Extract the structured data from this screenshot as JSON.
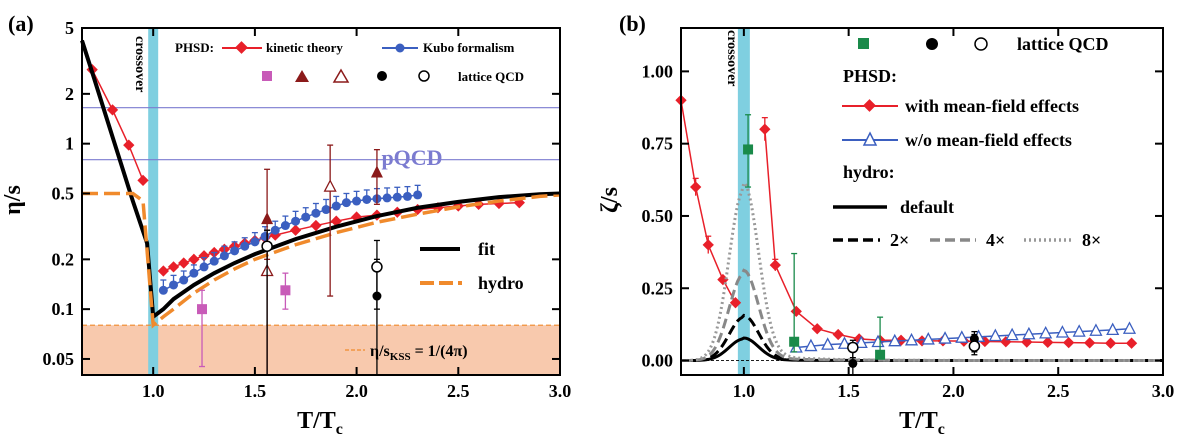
{
  "chart_data": [
    {
      "panel": "(a)",
      "type": "line",
      "xlabel": "T/T_c",
      "ylabel": "η/s",
      "yscale": "log",
      "xlim": [
        0.65,
        3.0
      ],
      "ylim": [
        0.04,
        5.0
      ],
      "xticks": [
        "1.0",
        "1.5",
        "2.0",
        "2.5",
        "3.0"
      ],
      "yticks": [
        {
          "value": 0.05,
          "label": "0.05"
        },
        {
          "value": 0.1,
          "label": "0.1"
        },
        {
          "value": 0.2,
          "label": "0.2"
        },
        {
          "value": 0.5,
          "label": "0.5"
        },
        {
          "value": 1,
          "label": "1"
        },
        {
          "value": 2,
          "label": "2"
        },
        {
          "value": 5,
          "label": "5"
        }
      ],
      "crossover_label": "crossover",
      "crossover_x": 1.0,
      "pqcd": {
        "label": "pQCD",
        "levels": [
          0.8,
          1.65
        ],
        "color": "#7b7bd0"
      },
      "kss": {
        "label_main": "η/s",
        "label_sub": "KSS",
        "label_tail": " = 1/(4π)",
        "value": 0.08,
        "fill": "#f8c9ad",
        "color": "#f08a2c"
      },
      "legend": {
        "phsd_prefix": "PHSD:",
        "kinetic": "kinetic theory",
        "kubo": "Kubo formalism",
        "lattice": "lattice QCD",
        "fit": "fit",
        "hydro": "hydro"
      },
      "series": [
        {
          "name": "kinetic theory",
          "color": "#e8202a",
          "marker": "diamond",
          "x": [
            0.7,
            0.8,
            0.88,
            0.95,
            1.05,
            1.1,
            1.15,
            1.2,
            1.25,
            1.3,
            1.35,
            1.4,
            1.45,
            1.5,
            1.55,
            1.6,
            1.7,
            1.8,
            1.9,
            2.0,
            2.1,
            2.2,
            2.3,
            2.4,
            2.5,
            2.6,
            2.7,
            2.8
          ],
          "values": [
            2.8,
            1.6,
            0.98,
            0.6,
            0.17,
            0.18,
            0.19,
            0.2,
            0.21,
            0.22,
            0.23,
            0.24,
            0.25,
            0.26,
            0.27,
            0.28,
            0.3,
            0.32,
            0.34,
            0.36,
            0.37,
            0.385,
            0.4,
            0.41,
            0.42,
            0.43,
            0.435,
            0.44
          ]
        },
        {
          "name": "Kubo formalism",
          "color": "#3b5fc0",
          "marker": "circle",
          "x": [
            1.05,
            1.1,
            1.15,
            1.2,
            1.25,
            1.3,
            1.35,
            1.4,
            1.45,
            1.5,
            1.55,
            1.6,
            1.65,
            1.7,
            1.75,
            1.8,
            1.85,
            1.9,
            1.95,
            2.0,
            2.05,
            2.1,
            2.15,
            2.2,
            2.25,
            2.3
          ],
          "values": [
            0.13,
            0.14,
            0.15,
            0.165,
            0.18,
            0.195,
            0.21,
            0.225,
            0.24,
            0.255,
            0.275,
            0.3,
            0.32,
            0.34,
            0.36,
            0.38,
            0.4,
            0.42,
            0.44,
            0.45,
            0.46,
            0.465,
            0.47,
            0.475,
            0.48,
            0.49
          ],
          "err_up": [
            0.02,
            0.02,
            0.02,
            0.02,
            0.025,
            0.025,
            0.03,
            0.03,
            0.03,
            0.035,
            0.04,
            0.04,
            0.045,
            0.05,
            0.05,
            0.055,
            0.06,
            0.06,
            0.06,
            0.065,
            0.065,
            0.07,
            0.07,
            0.07,
            0.07,
            0.07
          ]
        },
        {
          "name": "fit",
          "color": "#000000",
          "style": "solid",
          "x": [
            0.65,
            0.7,
            0.8,
            0.9,
            0.97,
            1.0,
            1.05,
            1.1,
            1.2,
            1.3,
            1.4,
            1.5,
            1.7,
            1.9,
            2.1,
            2.3,
            2.5,
            2.7,
            2.9,
            3.0
          ],
          "values": [
            4.2,
            2.7,
            1.1,
            0.45,
            0.25,
            0.09,
            0.1,
            0.115,
            0.14,
            0.165,
            0.19,
            0.215,
            0.265,
            0.315,
            0.365,
            0.41,
            0.445,
            0.475,
            0.495,
            0.5
          ]
        },
        {
          "name": "hydro",
          "color": "#f08a2c",
          "style": "dashed",
          "x": [
            0.65,
            0.9,
            0.95,
            1.0,
            1.05,
            1.1,
            1.2,
            1.3,
            1.4,
            1.5,
            1.7,
            1.9,
            2.1,
            2.3,
            2.5,
            2.7,
            2.9,
            3.0
          ],
          "values": [
            0.5,
            0.5,
            0.45,
            0.08,
            0.09,
            0.1,
            0.125,
            0.15,
            0.175,
            0.2,
            0.245,
            0.29,
            0.335,
            0.375,
            0.415,
            0.45,
            0.48,
            0.49
          ]
        },
        {
          "name": "lattice square",
          "color": "#c85bb8",
          "marker": "square",
          "x": [
            1.24,
            1.65
          ],
          "values": [
            0.1,
            0.13
          ],
          "err_low": [
            0.045,
            0.1
          ],
          "err_up": [
            0.13,
            0.165
          ]
        },
        {
          "name": "lattice triangle filled",
          "color": "#8b1a1a",
          "marker": "triangle",
          "x": [
            1.56,
            2.1
          ],
          "values": [
            0.35,
            0.67
          ],
          "err_low": [
            0.2,
            0.43
          ],
          "err_up": [
            0.7,
            0.92
          ]
        },
        {
          "name": "lattice triangle open",
          "color": "#8b1a1a",
          "marker": "triangle-open",
          "x": [
            1.56,
            1.87
          ],
          "values": [
            0.17,
            0.55
          ],
          "err_low": [
            0.04,
            0.12
          ],
          "err_up": [
            0.3,
            0.98
          ]
        },
        {
          "name": "lattice circle filled",
          "color": "#000000",
          "marker": "circle",
          "x": [
            2.1
          ],
          "values": [
            0.12
          ],
          "err_low": [
            0.04
          ],
          "err_up": [
            0.2
          ]
        },
        {
          "name": "lattice circle open",
          "color": "#000000",
          "marker": "circle-open",
          "x": [
            1.56,
            2.1
          ],
          "values": [
            0.24,
            0.18
          ],
          "err_low": [
            0.04,
            0.1
          ],
          "err_up": [
            0.3,
            0.26
          ]
        }
      ]
    },
    {
      "panel": "(b)",
      "type": "line",
      "xlabel": "T/T_c",
      "ylabel": "ζ/s",
      "xlim": [
        0.7,
        3.0
      ],
      "ylim": [
        -0.05,
        1.15
      ],
      "xticks": [
        "1.0",
        "1.5",
        "2.0",
        "2.5",
        "3.0"
      ],
      "yticks": [
        "0.00",
        "0.25",
        "0.50",
        "0.75",
        "1.00"
      ],
      "crossover_label": "crossover",
      "crossover_x": 1.0,
      "legend": {
        "lattice": "lattice QCD",
        "phsd_title": "PHSD:",
        "with_mf": "with mean-field effects",
        "without_mf": "w/o mean-field effects",
        "hydro_title": "hydro:",
        "default": "default",
        "x2": "2×",
        "x4": "4×",
        "x8": "8×"
      },
      "series": [
        {
          "name": "with mean-field effects",
          "color": "#e8202a",
          "marker": "diamond",
          "x": [
            0.7,
            0.77,
            0.83,
            0.9,
            0.96,
            1.1,
            1.15,
            1.25,
            1.35,
            1.45,
            1.55,
            1.65,
            1.75,
            1.85,
            1.95,
            2.05,
            2.15,
            2.25,
            2.35,
            2.45,
            2.55,
            2.65,
            2.75,
            2.85
          ],
          "values": [
            0.9,
            0.6,
            0.4,
            0.28,
            0.2,
            0.8,
            0.33,
            0.17,
            0.11,
            0.09,
            0.075,
            0.07,
            0.07,
            0.068,
            0.068,
            0.067,
            0.066,
            0.065,
            0.064,
            0.063,
            0.062,
            0.061,
            0.06,
            0.06
          ],
          "err_up": [
            0,
            0.03,
            0.03,
            0,
            0,
            0.04,
            0.02,
            0,
            0,
            0,
            0,
            0,
            0,
            0,
            0,
            0,
            0,
            0,
            0,
            0,
            0,
            0,
            0,
            0
          ]
        },
        {
          "name": "w/o mean-field effects",
          "color": "#3b5fc0",
          "marker": "triangle-open",
          "x": [
            1.25,
            1.32,
            1.4,
            1.48,
            1.56,
            1.64,
            1.72,
            1.8,
            1.88,
            1.96,
            2.04,
            2.12,
            2.2,
            2.28,
            2.36,
            2.44,
            2.52,
            2.6,
            2.68,
            2.76,
            2.84
          ],
          "values": [
            0.045,
            0.05,
            0.055,
            0.058,
            0.061,
            0.064,
            0.067,
            0.07,
            0.073,
            0.076,
            0.079,
            0.082,
            0.085,
            0.088,
            0.091,
            0.094,
            0.097,
            0.1,
            0.103,
            0.106,
            0.11
          ]
        },
        {
          "name": "default",
          "color": "#000000",
          "style": "solid",
          "peak": 0.075
        },
        {
          "name": "2×",
          "color": "#000000",
          "style": "dashed",
          "peak": 0.15
        },
        {
          "name": "4×",
          "color": "#888888",
          "style": "dashed",
          "peak": 0.3
        },
        {
          "name": "8×",
          "color": "#999999",
          "style": "dotted",
          "peak": 0.59
        },
        {
          "name": "lattice square",
          "color": "#1a8a4a",
          "marker": "square",
          "x": [
            1.02,
            1.24,
            1.65
          ],
          "values": [
            0.73,
            0.065,
            0.02
          ],
          "err_low": [
            0.6,
            0.03,
            0.01
          ],
          "err_up": [
            0.85,
            0.37,
            0.15
          ]
        },
        {
          "name": "lattice circle filled",
          "color": "#000000",
          "marker": "circle",
          "x": [
            1.52,
            2.1
          ],
          "values": [
            -0.01,
            0.075
          ],
          "err_low": [
            -0.05,
            0.03
          ],
          "err_up": [
            0.03,
            0.1
          ]
        },
        {
          "name": "lattice circle open",
          "color": "#000000",
          "marker": "circle-open",
          "x": [
            1.52,
            2.1
          ],
          "values": [
            0.045,
            0.05
          ],
          "err_low": [
            0.01,
            0.02
          ],
          "err_up": [
            0.07,
            0.09
          ]
        }
      ]
    }
  ]
}
